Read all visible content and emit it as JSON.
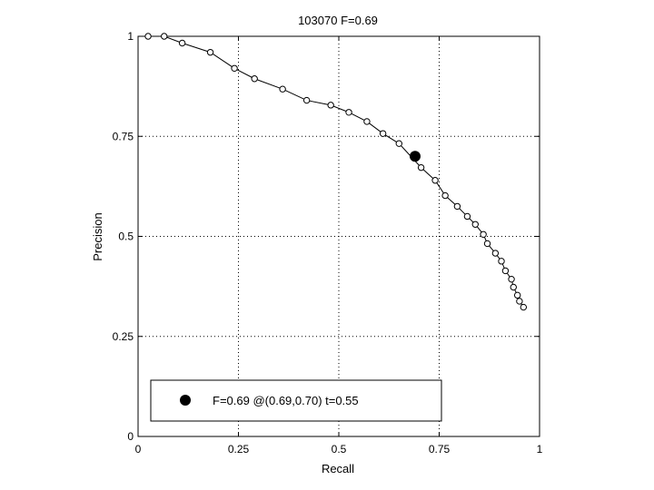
{
  "chart_data": {
    "type": "line",
    "title": "103070 F=0.69",
    "xlabel": "Recall",
    "ylabel": "Precision",
    "xlim": [
      0,
      1
    ],
    "ylim": [
      0,
      1
    ],
    "grid": true,
    "legend_placement": "bottom",
    "xticks": [
      0,
      0.25,
      0.5,
      0.75,
      1
    ],
    "yticks": [
      0,
      0.25,
      0.5,
      0.75,
      1
    ],
    "xtick_labels": [
      "0",
      "0.25",
      "0.5",
      "0.75",
      "1"
    ],
    "ytick_labels": [
      "0",
      "0.25",
      "0.5",
      "0.75",
      "1"
    ],
    "series": [
      {
        "points": [
          [
            0.025,
            1.0
          ],
          [
            0.065,
            1.0
          ],
          [
            0.11,
            0.983
          ],
          [
            0.18,
            0.96
          ],
          [
            0.24,
            0.92
          ],
          [
            0.29,
            0.894
          ],
          [
            0.36,
            0.868
          ],
          [
            0.42,
            0.84
          ],
          [
            0.48,
            0.828
          ],
          [
            0.525,
            0.81
          ],
          [
            0.57,
            0.787
          ],
          [
            0.61,
            0.757
          ],
          [
            0.65,
            0.732
          ],
          [
            0.705,
            0.672
          ],
          [
            0.74,
            0.64
          ],
          [
            0.765,
            0.602
          ],
          [
            0.795,
            0.575
          ],
          [
            0.82,
            0.55
          ],
          [
            0.84,
            0.53
          ],
          [
            0.86,
            0.505
          ],
          [
            0.87,
            0.482
          ],
          [
            0.89,
            0.458
          ],
          [
            0.905,
            0.438
          ],
          [
            0.915,
            0.414
          ],
          [
            0.93,
            0.393
          ],
          [
            0.935,
            0.373
          ],
          [
            0.945,
            0.353
          ],
          [
            0.95,
            0.338
          ],
          [
            0.96,
            0.323
          ]
        ]
      }
    ],
    "highlight": {
      "x": 0.69,
      "y": 0.7,
      "label": "F=0.69 @(0.69,0.70) t=0.55"
    }
  }
}
